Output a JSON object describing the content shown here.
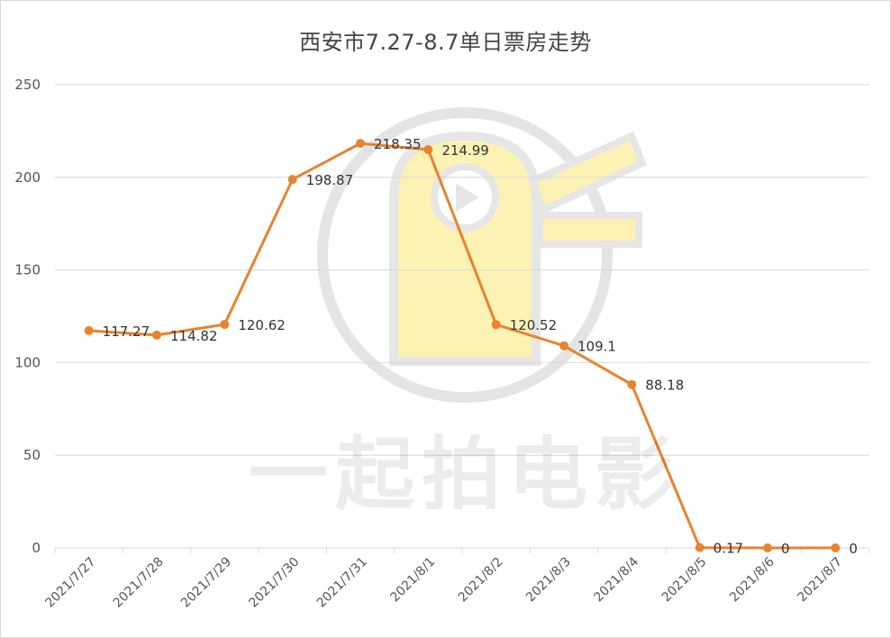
{
  "watermark_text": "一起拍电影",
  "colors": {
    "line": "#E8832E",
    "grid": "#d9d9d9",
    "watermark_yellow": "#FCEFA8",
    "watermark_gray": "#e6e6e6"
  },
  "chart_data": {
    "type": "line",
    "title": "西安市7.27-8.7单日票房走势",
    "xlabel": "",
    "ylabel": "",
    "ylim": [
      0,
      250
    ],
    "yticks": [
      0,
      50,
      100,
      150,
      200,
      250
    ],
    "grid": true,
    "categories": [
      "2021/7/27",
      "2021/7/28",
      "2021/7/29",
      "2021/7/30",
      "2021/7/31",
      "2021/8/1",
      "2021/8/2",
      "2021/8/3",
      "2021/8/4",
      "2021/8/5",
      "2021/8/6",
      "2021/8/7"
    ],
    "values": [
      117.27,
      114.82,
      120.62,
      198.87,
      218.35,
      214.99,
      120.52,
      109.1,
      88.18,
      0.17,
      0,
      0
    ],
    "labels": [
      "117.27",
      "114.82",
      "120.62",
      "198.87",
      "218.35",
      "214.99",
      "120.52",
      "109.1",
      "88.18",
      "0.17",
      "0",
      "0"
    ]
  }
}
